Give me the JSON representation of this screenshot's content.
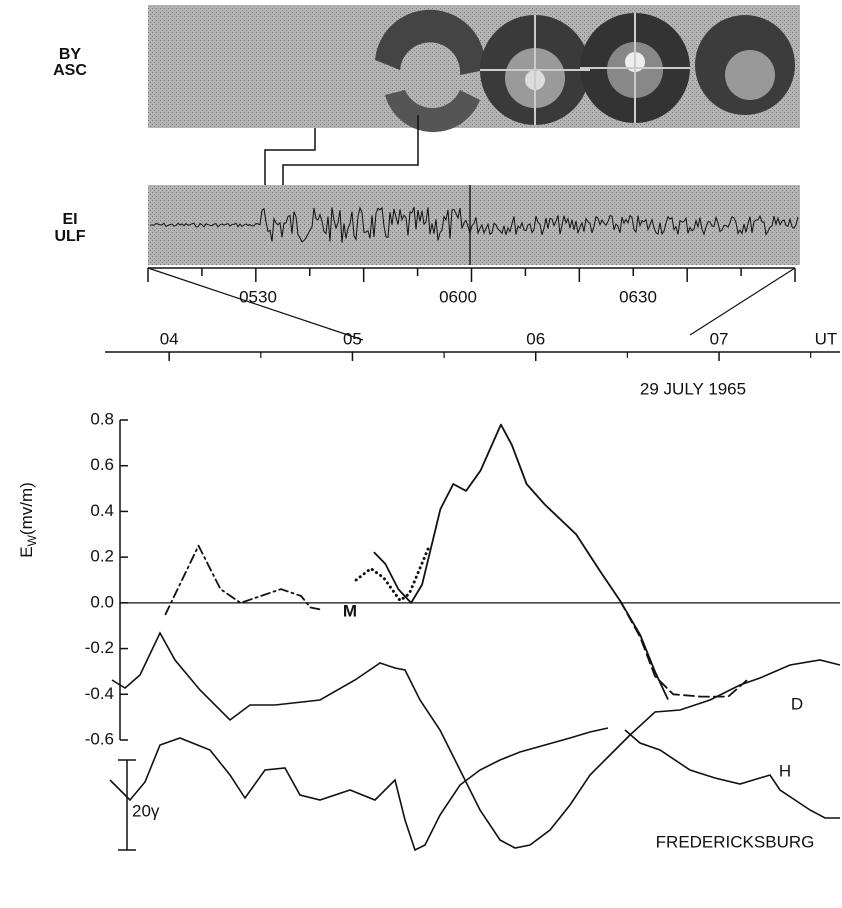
{
  "top_panel": {
    "label_lines": [
      "BY",
      "ASC"
    ]
  },
  "ulf_panel": {
    "label_lines": [
      "EI",
      "ULF"
    ],
    "time_labels": [
      "0530",
      "0600",
      "0630"
    ]
  },
  "chart_data": {
    "type": "line",
    "xlim": [
      3.65,
      7.66
    ],
    "xticks": [
      {
        "value": 4,
        "label": "04"
      },
      {
        "value": 5,
        "label": "05"
      },
      {
        "value": 6,
        "label": "06"
      },
      {
        "value": 7,
        "label": "07"
      }
    ],
    "xminorticks": [
      4.5,
      5.5,
      6.5,
      7.5
    ],
    "x_unit": "UT",
    "date": "29 JULY 1965",
    "ylabel": {
      "main": "E",
      "sub": "W",
      "unit": "(mv/m)"
    },
    "ylim": [
      -0.6,
      0.8
    ],
    "yticks": [
      0.8,
      0.6,
      0.4,
      0.2,
      {
        "value": 0,
        "label": "0.0"
      },
      -0.2,
      -0.4,
      -0.6
    ],
    "series": [
      {
        "style": "dash-dot",
        "color": "#111",
        "x": [
          3.98,
          4.16,
          4.28,
          4.39,
          4.61,
          4.72,
          4.77,
          4.83
        ],
        "values": [
          -0.05,
          0.25,
          0.06,
          0.0,
          0.06,
          0.03,
          -0.02,
          -0.03
        ]
      },
      {
        "style": "solid",
        "color": "#111",
        "x": [
          5.12,
          5.18,
          5.25,
          5.32,
          5.38,
          5.48,
          5.55,
          5.62,
          5.7,
          5.81,
          5.87,
          5.95,
          6.05,
          6.22,
          6.35,
          6.46,
          6.57,
          6.65,
          6.72
        ],
        "values": [
          0.22,
          0.17,
          0.06,
          0.0,
          0.08,
          0.41,
          0.52,
          0.49,
          0.58,
          0.78,
          0.69,
          0.52,
          0.43,
          0.3,
          0.14,
          0.01,
          -0.14,
          -0.3,
          -0.42
        ]
      },
      {
        "style": "dotted",
        "color": "#111",
        "x": [
          5.02,
          5.1,
          5.17,
          5.26,
          5.31,
          5.42
        ],
        "values": [
          0.1,
          0.15,
          0.11,
          0.01,
          0.04,
          0.25
        ]
      },
      {
        "style": "dashed",
        "color": "#111",
        "x": [
          6.46,
          6.57,
          6.65,
          6.75,
          6.9,
          7.05,
          7.15
        ],
        "values": [
          0.01,
          -0.15,
          -0.32,
          -0.4,
          -0.41,
          -0.41,
          -0.34
        ]
      }
    ],
    "annotations": [
      "M"
    ]
  },
  "magnetometer": {
    "labels": [
      "D",
      "H"
    ],
    "scale_label": "20γ",
    "station": "FREDERICKSBURG"
  }
}
